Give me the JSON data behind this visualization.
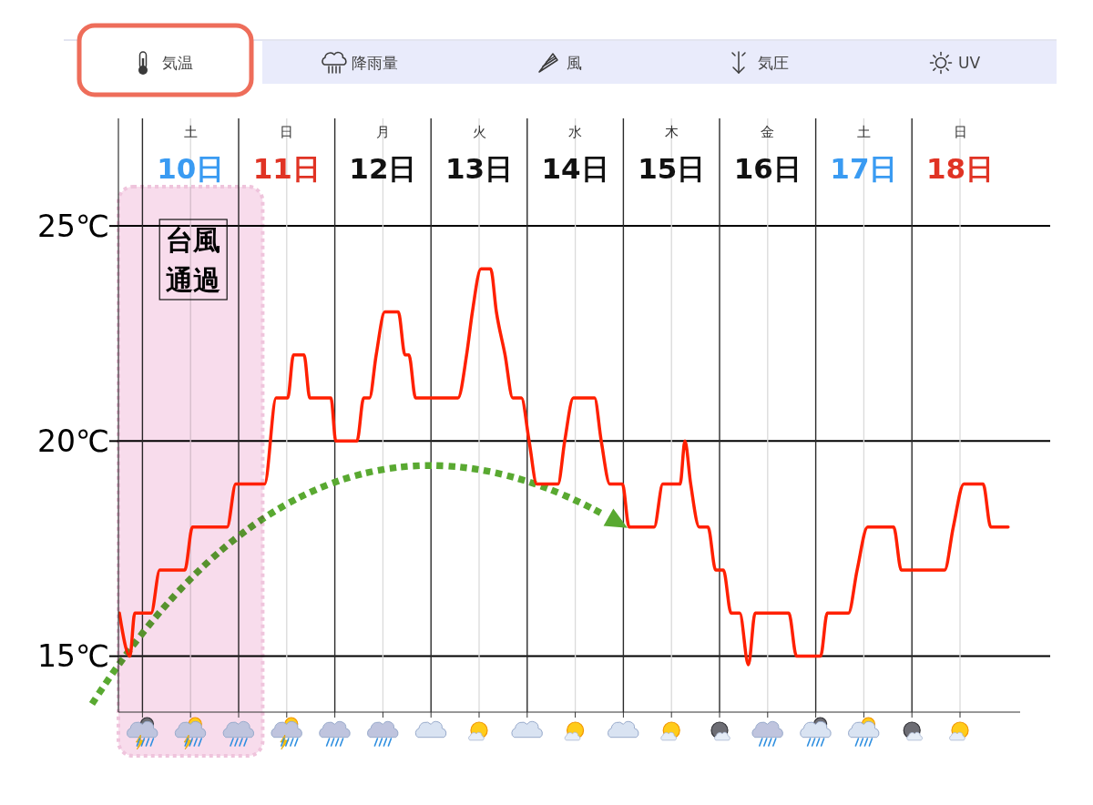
{
  "chart_data": {
    "type": "line",
    "title": "気温",
    "annotations": [
      "降雨量",
      "風",
      "気圧",
      "UV",
      "土",
      "日",
      "月",
      "火",
      "水",
      "木",
      "金",
      "土",
      "日"
    ],
    "xlim": [
      9.25,
      18.625
    ],
    "xticks": [
      {
        "value": 9.5,
        "label": null
      },
      {
        "value": 10,
        "label": "10日"
      },
      {
        "value": 10.5,
        "label": null
      },
      {
        "value": 11,
        "label": "11日"
      },
      {
        "value": 11.5,
        "label": null
      },
      {
        "value": 12,
        "label": "12日"
      },
      {
        "value": 12.5,
        "label": null
      },
      {
        "value": 13,
        "label": "13日"
      },
      {
        "value": 13.5,
        "label": null
      },
      {
        "value": 14,
        "label": "14日"
      },
      {
        "value": 14.5,
        "label": null
      },
      {
        "value": 15,
        "label": "15日"
      },
      {
        "value": 15.5,
        "label": null
      },
      {
        "value": 16,
        "label": "16日"
      },
      {
        "value": 16.5,
        "label": null
      },
      {
        "value": 17,
        "label": "17日"
      },
      {
        "value": 17.5,
        "label": null
      },
      {
        "value": 18,
        "label": "18日"
      }
    ],
    "ylim": [
      13.7,
      27.5
    ],
    "yticks": [
      {
        "value": 15,
        "label": "15℃"
      },
      {
        "value": 20,
        "label": "20℃"
      },
      {
        "value": 25,
        "label": "25℃"
      }
    ],
    "grid": true,
    "bands": [
      {
        "axis": "x",
        "from": 9.25,
        "to": 10.75,
        "label": "台風通過",
        "color": "#f8dcec"
      }
    ],
    "color": "#ff2000",
    "x": [
      9.26,
      9.37,
      9.42,
      9.59,
      9.68,
      9.94,
      10.02,
      10.38,
      10.47,
      10.77,
      10.89,
      11.01,
      11.07,
      11.18,
      11.24,
      11.46,
      11.51,
      11.73,
      11.8,
      11.86,
      11.93,
      12.02,
      12.16,
      12.23,
      12.27,
      12.34,
      12.78,
      12.87,
      12.93,
      13.02,
      13.12,
      13.18,
      13.27,
      13.35,
      13.44,
      13.52,
      13.6,
      13.82,
      13.89,
      13.98,
      14.2,
      14.27,
      14.36,
      14.49,
      14.56,
      14.82,
      14.91,
      15.09,
      15.14,
      15.2,
      15.29,
      15.38,
      15.46,
      15.54,
      15.62,
      15.71,
      15.8,
      15.87,
      16.22,
      16.3,
      16.55,
      16.62,
      16.84,
      16.93,
      17.04,
      17.31,
      17.39,
      17.84,
      17.93,
      18.04,
      18.24,
      18.32,
      18.5
    ],
    "values": [
      16,
      15,
      16,
      16,
      17,
      17,
      18,
      18,
      19,
      19,
      21,
      21,
      22,
      22,
      21,
      21,
      20,
      20,
      21,
      21,
      22,
      23,
      23,
      22,
      22,
      21,
      21,
      22,
      23,
      24,
      24,
      23,
      22,
      21,
      21,
      20,
      19,
      19,
      20,
      21,
      21,
      20,
      19,
      19,
      18,
      18,
      19,
      19,
      20,
      19,
      18,
      18,
      17,
      17,
      16,
      16,
      14.8,
      16,
      16,
      15,
      15,
      16,
      16,
      17,
      18,
      18,
      17,
      17,
      18,
      19,
      19,
      18,
      18
    ]
  }
}
